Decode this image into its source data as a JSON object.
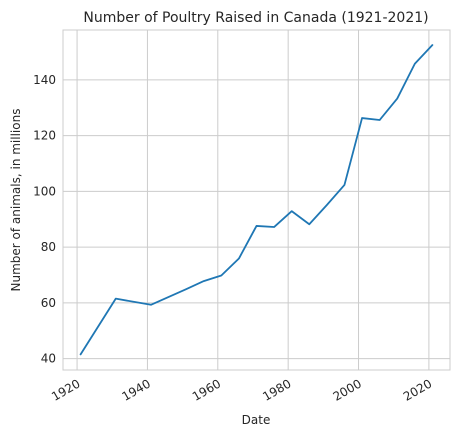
{
  "chart_data": {
    "type": "line",
    "title": "Number of Poultry Raised in Canada (1921-2021)",
    "xlabel": "Date",
    "ylabel": "Number of animals, in millions",
    "x": [
      1921,
      1931,
      1941,
      1951,
      1956,
      1961,
      1966,
      1971,
      1976,
      1981,
      1986,
      1991,
      1996,
      2001,
      2006,
      2011,
      2016,
      2021
    ],
    "series": [
      {
        "values": [
          41.5,
          61.5,
          59.3,
          64.9,
          67.8,
          69.8,
          75.9,
          87.6,
          87.2,
          92.9,
          88.2,
          95.1,
          102.3,
          126.3,
          125.6,
          133.3,
          145.8,
          152.5
        ]
      }
    ],
    "xticks": [
      "1920",
      "1940",
      "1960",
      "1980",
      "2000",
      "2020"
    ],
    "yticks": [
      "40",
      "60",
      "80",
      "100",
      "120",
      "140"
    ],
    "xlim": [
      1916,
      2026
    ],
    "ylim": [
      35.9,
      157.9
    ],
    "grid": true,
    "line_color": "#1f77b4",
    "grid_color": "#cccccc"
  }
}
